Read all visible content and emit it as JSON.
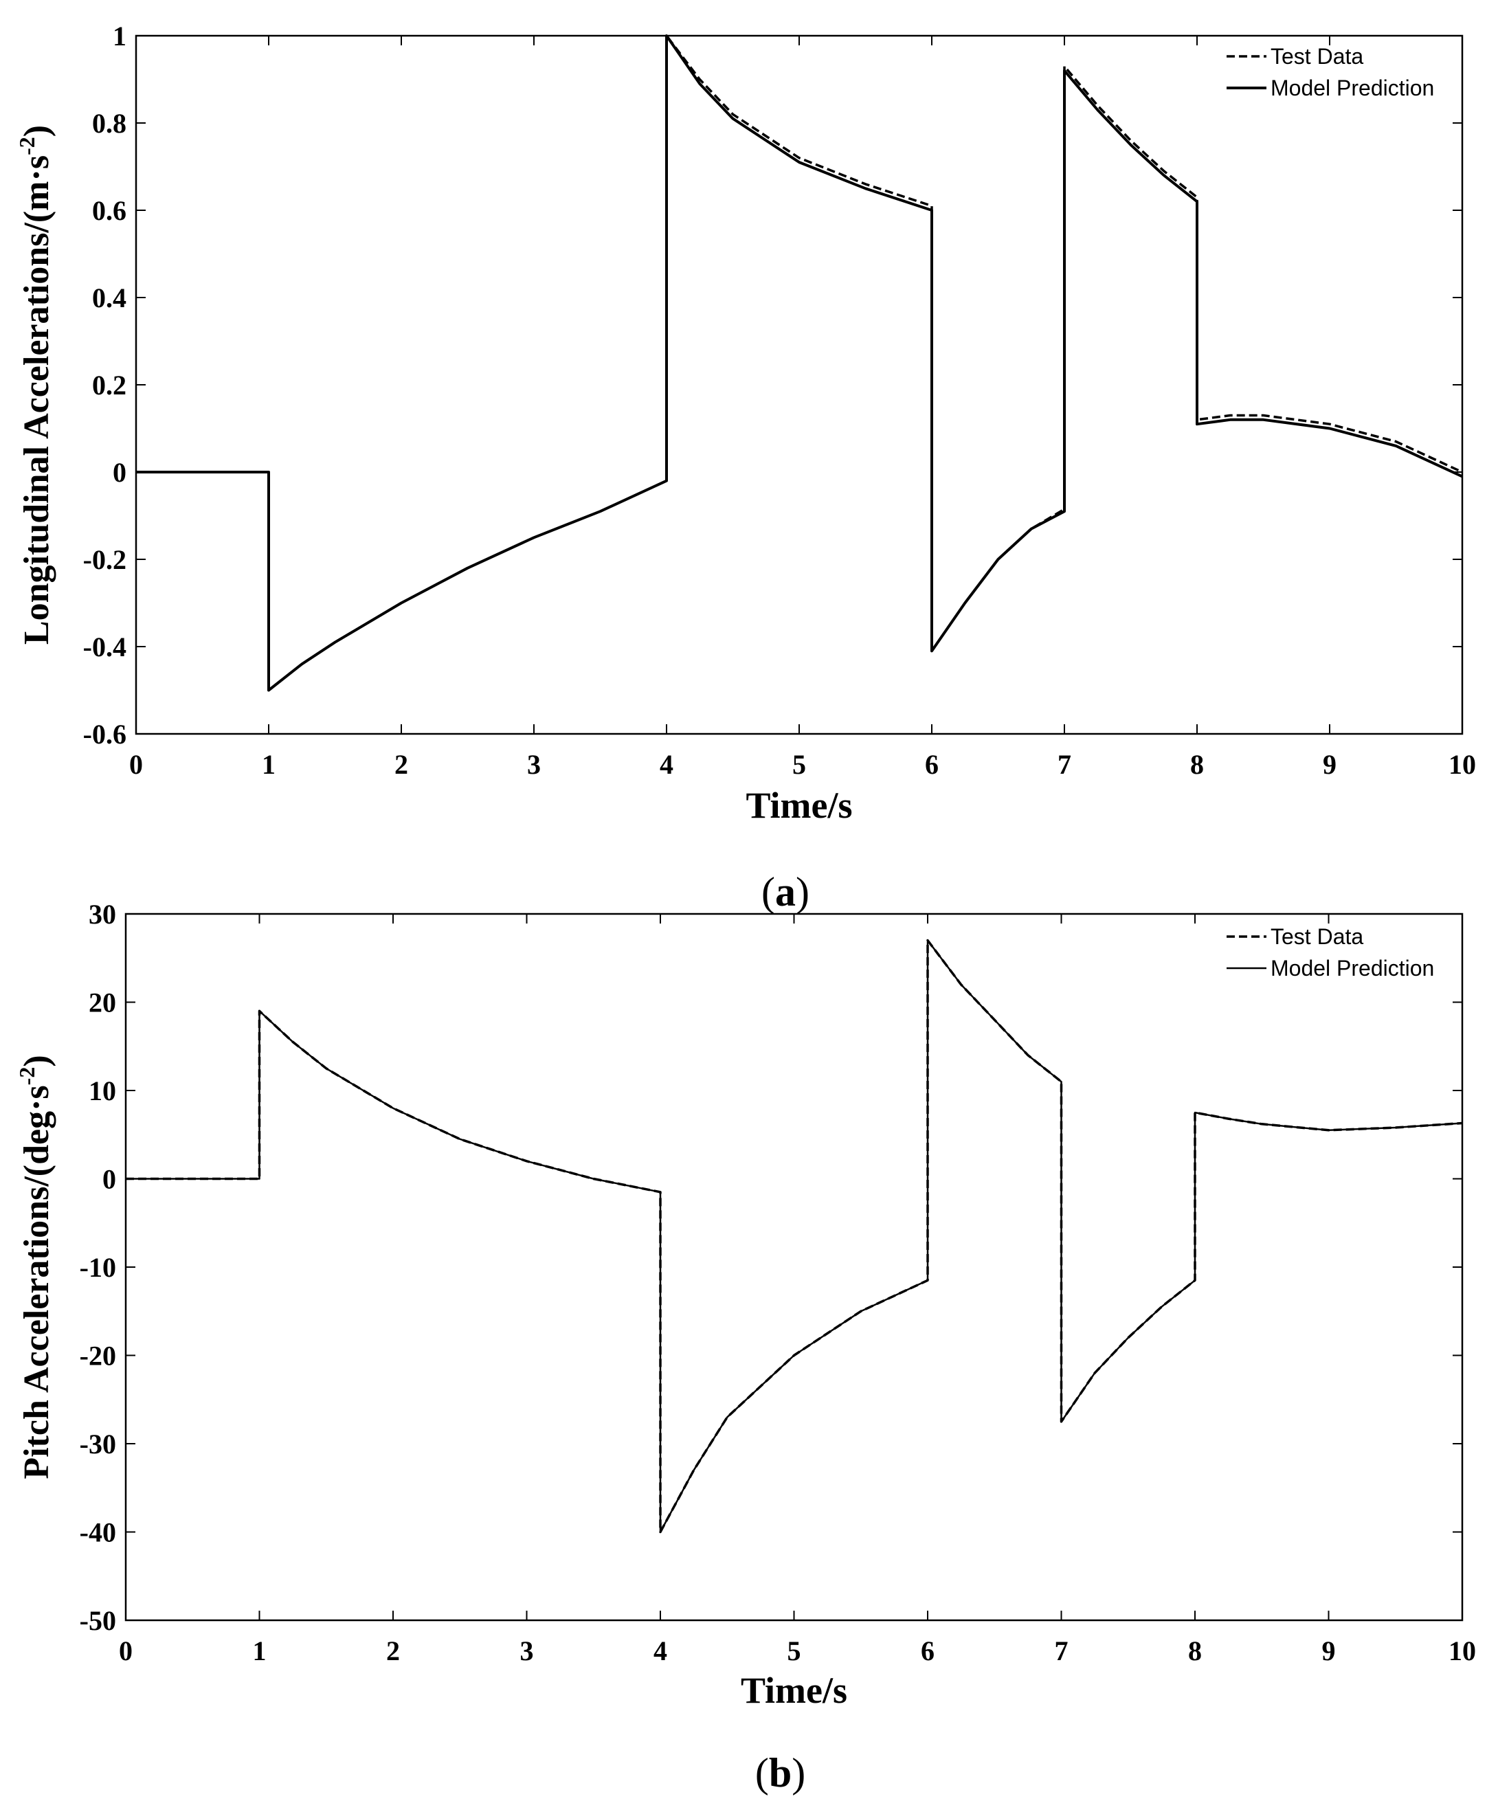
{
  "chart_data": [
    {
      "type": "line",
      "panel_label": "a",
      "xlabel": "Time/s",
      "ylabel": "Longitudinal Accelerations/(m·s",
      "ylabel_sup": "-2",
      "ylabel_close": ")",
      "xlim": [
        0,
        10
      ],
      "ylim": [
        -0.6,
        1
      ],
      "xticks": [
        0,
        1,
        2,
        3,
        4,
        5,
        6,
        7,
        8,
        9,
        10
      ],
      "yticks": [
        1,
        0.8,
        0.6,
        0.4,
        0.2,
        0,
        -0.2,
        -0.4,
        -0.6
      ],
      "legend_position": "top-right",
      "legend": [
        "Test Data",
        "Model Prediction"
      ],
      "series": [
        {
          "name": "Test Data",
          "style": "dashed",
          "x": [
            0,
            1,
            1,
            1.25,
            1.5,
            2,
            2.5,
            3,
            3.5,
            4,
            4,
            4.25,
            4.5,
            5,
            5.5,
            6,
            6,
            6.25,
            6.5,
            6.75,
            7,
            7,
            7.25,
            7.5,
            7.75,
            8,
            8,
            8.25,
            8.5,
            9,
            9.5,
            10
          ],
          "y": [
            0,
            0,
            -0.5,
            -0.44,
            -0.39,
            -0.3,
            -0.22,
            -0.15,
            -0.09,
            -0.02,
            1.0,
            0.9,
            0.82,
            0.72,
            0.66,
            0.61,
            -0.41,
            -0.3,
            -0.2,
            -0.13,
            -0.085,
            0.93,
            0.84,
            0.76,
            0.69,
            0.63,
            0.12,
            0.13,
            0.13,
            0.11,
            0.07,
            0.0
          ]
        },
        {
          "name": "Model Prediction",
          "style": "solid",
          "x": [
            0,
            1,
            1,
            1.25,
            1.5,
            2,
            2.5,
            3,
            3.5,
            4,
            4,
            4.25,
            4.5,
            5,
            5.5,
            6,
            6,
            6.25,
            6.5,
            6.75,
            7,
            7,
            7.25,
            7.5,
            7.75,
            8,
            8,
            8.25,
            8.5,
            9,
            9.5,
            10
          ],
          "y": [
            0,
            0,
            -0.5,
            -0.44,
            -0.39,
            -0.3,
            -0.22,
            -0.15,
            -0.09,
            -0.02,
            1.0,
            0.89,
            0.81,
            0.71,
            0.65,
            0.6,
            -0.41,
            -0.3,
            -0.2,
            -0.13,
            -0.09,
            0.92,
            0.83,
            0.75,
            0.68,
            0.62,
            0.11,
            0.12,
            0.12,
            0.1,
            0.06,
            -0.01
          ]
        }
      ]
    },
    {
      "type": "line",
      "panel_label": "b",
      "xlabel": "Time/s",
      "ylabel": "Pitch Accelerations/(deg·s",
      "ylabel_sup": "-2",
      "ylabel_close": ")",
      "xlim": [
        0,
        10
      ],
      "ylim": [
        -50,
        30
      ],
      "xticks": [
        0,
        1,
        2,
        3,
        4,
        5,
        6,
        7,
        8,
        9,
        10
      ],
      "yticks": [
        30,
        20,
        10,
        0,
        -10,
        -20,
        -30,
        -40,
        -50
      ],
      "legend_position": "top-right",
      "legend": [
        "Test Data",
        "Model Prediction"
      ],
      "series": [
        {
          "name": "Test Data",
          "style": "dashed",
          "x": [
            0,
            1,
            1,
            1.25,
            1.5,
            2,
            2.5,
            3,
            3.5,
            4,
            4,
            4.25,
            4.5,
            5,
            5.5,
            6,
            6,
            6.25,
            6.5,
            6.75,
            7,
            7,
            7.25,
            7.5,
            7.75,
            8,
            8,
            8.25,
            8.5,
            9,
            9.5,
            10
          ],
          "y": [
            0,
            0,
            19,
            15.5,
            12.5,
            8,
            4.5,
            2,
            0,
            -1.5,
            -40,
            -33,
            -27,
            -20,
            -15,
            -11.5,
            27,
            22,
            18,
            14,
            11,
            -27.5,
            -22,
            -18,
            -14.5,
            -11.5,
            7.5,
            6.8,
            6.2,
            5.5,
            5.8,
            6.3
          ]
        },
        {
          "name": "Model Prediction",
          "style": "solid",
          "x": [
            0,
            1,
            1,
            1.25,
            1.5,
            2,
            2.5,
            3,
            3.5,
            4,
            4,
            4.25,
            4.5,
            5,
            5.5,
            6,
            6,
            6.25,
            6.5,
            6.75,
            7,
            7,
            7.25,
            7.5,
            7.75,
            8,
            8,
            8.25,
            8.5,
            9,
            9.5,
            10
          ],
          "y": [
            0,
            0,
            19,
            15.5,
            12.5,
            8,
            4.5,
            2,
            0,
            -1.5,
            -40,
            -33,
            -27,
            -20,
            -15,
            -11.5,
            27,
            22,
            18,
            14,
            11,
            -27.5,
            -22,
            -18,
            -14.5,
            -11.5,
            7.5,
            6.8,
            6.2,
            5.5,
            5.8,
            6.3
          ]
        }
      ]
    }
  ]
}
